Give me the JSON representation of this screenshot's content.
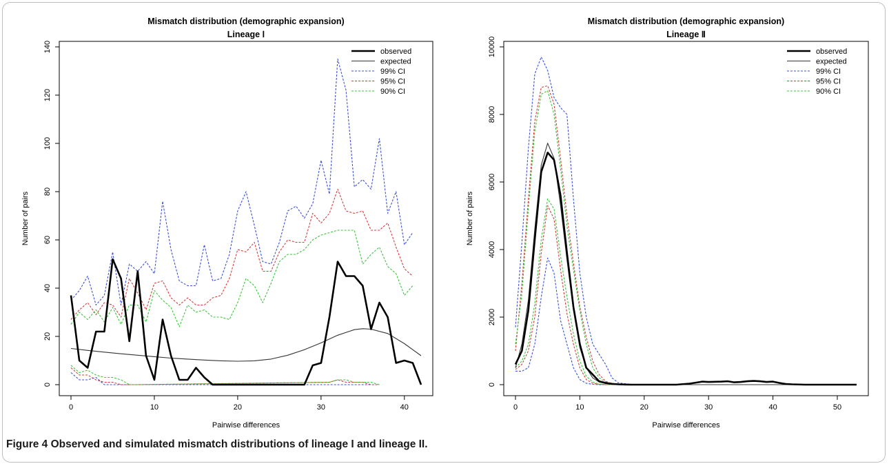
{
  "caption": {
    "label": "Figure 4",
    "text": "Observed and simulated mismatch distributions of lineage I and lineage II."
  },
  "chart_data": [
    {
      "type": "line",
      "title": "Mismatch distribution (demographic expansion)",
      "subtitle": "Lineage Ⅰ",
      "xlabel": "Pairwise differences",
      "ylabel": "Number of pairs",
      "xlim": [
        0,
        42
      ],
      "ylim": [
        0,
        140
      ],
      "xticks": [
        0,
        10,
        20,
        30,
        40
      ],
      "yticks": [
        0,
        20,
        40,
        60,
        80,
        100,
        120,
        140
      ],
      "legend_position": "top-right",
      "series": [
        {
          "name": "observed",
          "color": "#000000",
          "width": 2.6,
          "dash": "",
          "x": [
            0,
            1,
            2,
            3,
            4,
            5,
            6,
            7,
            8,
            9,
            10,
            11,
            12,
            13,
            14,
            15,
            16,
            17,
            18,
            19,
            20,
            21,
            22,
            23,
            24,
            25,
            26,
            27,
            28,
            29,
            30,
            31,
            32,
            33,
            34,
            35,
            36,
            37,
            38,
            39,
            40,
            41,
            42
          ],
          "values": [
            37,
            10,
            7,
            22,
            22,
            52,
            44,
            18,
            47,
            12,
            2,
            27,
            12,
            2,
            2,
            7,
            3,
            0,
            0,
            0,
            0,
            0,
            0,
            0,
            0,
            0,
            0,
            0,
            0,
            8,
            9,
            28,
            51,
            45,
            45,
            41,
            23,
            34,
            28,
            9,
            10,
            9,
            0
          ]
        },
        {
          "name": "expected",
          "color": "#333333",
          "width": 1.1,
          "dash": "",
          "x": [
            0,
            2,
            4,
            6,
            8,
            10,
            12,
            14,
            16,
            18,
            20,
            22,
            24,
            26,
            28,
            30,
            32,
            34,
            35,
            36,
            38,
            40,
            42
          ],
          "values": [
            15,
            14.2,
            13.5,
            12.8,
            12.2,
            11.6,
            11,
            10.6,
            10.2,
            9.9,
            9.7,
            9.9,
            10.6,
            12.2,
            14.5,
            17.3,
            20.5,
            22.8,
            23.2,
            23,
            21.2,
            17,
            12
          ]
        },
        {
          "name": "99% CI",
          "color": "#3b4fd6",
          "width": 1.1,
          "dash": "3,2",
          "x": [
            0,
            1,
            2,
            3,
            4,
            5,
            6,
            7,
            8,
            9,
            10,
            11,
            12,
            13,
            14,
            15,
            16,
            17,
            18,
            19,
            20,
            21,
            22,
            23,
            24,
            25,
            26,
            27,
            28,
            29,
            30,
            31,
            32,
            33,
            34,
            35,
            36,
            37,
            38,
            39,
            40,
            41
          ],
          "values": [
            35,
            39,
            45,
            33,
            37,
            55,
            33,
            50,
            47,
            51,
            46,
            76,
            56,
            43,
            41,
            41,
            58,
            43,
            44,
            54,
            72,
            80,
            66,
            51,
            50,
            59,
            72,
            74,
            69,
            75,
            93,
            79,
            135,
            122,
            82,
            85,
            81,
            102,
            71,
            80,
            58,
            63
          ]
        },
        {
          "name": "95% CI",
          "color": "#d63b3b",
          "width": 1.1,
          "dash": "3,2",
          "x": [
            0,
            1,
            2,
            3,
            4,
            5,
            6,
            7,
            8,
            9,
            10,
            11,
            12,
            13,
            14,
            15,
            16,
            17,
            18,
            19,
            20,
            21,
            22,
            23,
            24,
            25,
            26,
            27,
            28,
            29,
            30,
            31,
            32,
            33,
            34,
            35,
            36,
            37,
            38,
            39,
            40,
            41
          ],
          "values": [
            27,
            31,
            34,
            29,
            34,
            33,
            28,
            44,
            38,
            31,
            42,
            43,
            36,
            33,
            36,
            33,
            33,
            36,
            37,
            44,
            56,
            55,
            59,
            47,
            47,
            55,
            60,
            59,
            59,
            71,
            67,
            71,
            81,
            72,
            71,
            72,
            64,
            64,
            67,
            57,
            48,
            45
          ]
        },
        {
          "name": "90% CI",
          "color": "#3bc43b",
          "width": 1.1,
          "dash": "3,2",
          "x": [
            0,
            1,
            2,
            3,
            4,
            5,
            6,
            7,
            8,
            9,
            10,
            11,
            12,
            13,
            14,
            15,
            16,
            17,
            18,
            19,
            20,
            21,
            22,
            23,
            24,
            25,
            26,
            27,
            28,
            29,
            30,
            31,
            32,
            33,
            34,
            35,
            36,
            37,
            38,
            39,
            40,
            41
          ],
          "values": [
            25,
            30,
            27,
            31,
            26,
            32,
            25,
            33,
            33,
            26,
            39,
            35,
            32,
            24,
            33,
            30,
            31,
            28,
            28,
            27,
            34,
            44,
            41,
            34,
            42,
            51,
            54,
            54,
            56,
            60,
            62,
            63,
            64,
            64,
            64,
            50,
            54,
            57,
            49,
            46,
            37,
            41
          ]
        },
        {
          "name": "lower 99% CI",
          "color": "#3b4fd6",
          "width": 1.1,
          "dash": "3,2",
          "x": [
            0,
            1,
            2,
            3,
            4,
            5,
            6,
            7,
            8,
            31,
            32,
            33,
            34,
            35,
            36,
            37
          ],
          "values": [
            5,
            2,
            2,
            3,
            0,
            0,
            0,
            0,
            0,
            0,
            0,
            0,
            0,
            0,
            0,
            0
          ]
        },
        {
          "name": "lower 95% CI",
          "color": "#d63b3b",
          "width": 1.1,
          "dash": "3,2",
          "x": [
            0,
            1,
            2,
            3,
            4,
            5,
            6,
            7,
            8,
            31,
            32,
            33,
            34,
            35,
            36,
            37
          ],
          "values": [
            7,
            4,
            4,
            2,
            1,
            1,
            0,
            0,
            0,
            1,
            2,
            1,
            1,
            1,
            0,
            0
          ]
        },
        {
          "name": "lower 90% CI",
          "color": "#3bc43b",
          "width": 1.1,
          "dash": "3,2",
          "x": [
            0,
            1,
            2,
            3,
            4,
            5,
            6,
            7,
            8,
            31,
            32,
            33,
            34,
            35,
            36,
            37
          ],
          "values": [
            8,
            5,
            6,
            4,
            3,
            3,
            2,
            0,
            0,
            1,
            2,
            2,
            1,
            1,
            1,
            0
          ]
        }
      ],
      "legend": [
        {
          "label": "observed",
          "color": "#000000",
          "width": 2.6,
          "dash": ""
        },
        {
          "label": "expected",
          "color": "#333333",
          "width": 1.1,
          "dash": ""
        },
        {
          "label": "99% CI",
          "color": "#3b4fd6",
          "width": 1.1,
          "dash": "3,2"
        },
        {
          "label": "95% CI",
          "color": "#d63b3b",
          "width": 1.1,
          "dash": "3,2"
        },
        {
          "label": "90% CI",
          "color": "#3bc43b",
          "width": 1.1,
          "dash": "3,2"
        }
      ]
    },
    {
      "type": "line",
      "title": "Mismatch distribution (demographic expansion)",
      "subtitle": "Lineage Ⅱ",
      "xlabel": "Pairwise differences",
      "ylabel": "Number of pairs",
      "xlim": [
        0,
        53
      ],
      "ylim": [
        0,
        10000
      ],
      "xticks": [
        0,
        10,
        20,
        30,
        40,
        50
      ],
      "yticks": [
        0,
        2000,
        4000,
        6000,
        8000,
        10000
      ],
      "legend_position": "top-right",
      "series": [
        {
          "name": "observed",
          "color": "#000000",
          "width": 2.6,
          "dash": "",
          "x": [
            0,
            1,
            2,
            3,
            4,
            5,
            6,
            7,
            8,
            9,
            10,
            11,
            12,
            13,
            14,
            15,
            16,
            17,
            18,
            20,
            25,
            27,
            28,
            29,
            30,
            31,
            32,
            33,
            34,
            35,
            36,
            37,
            38,
            39,
            40,
            41,
            42,
            43,
            45,
            50,
            53
          ],
          "values": [
            600,
            1000,
            2200,
            4300,
            6300,
            6870,
            6650,
            5600,
            3900,
            2300,
            1200,
            500,
            300,
            100,
            50,
            25,
            10,
            5,
            0,
            0,
            0,
            30,
            60,
            90,
            80,
            85,
            90,
            100,
            70,
            80,
            100,
            110,
            100,
            80,
            90,
            50,
            20,
            10,
            0,
            0,
            0
          ]
        },
        {
          "name": "expected",
          "color": "#333333",
          "width": 1.1,
          "dash": "",
          "x": [
            0,
            1,
            2,
            3,
            4,
            5,
            6,
            7,
            8,
            9,
            10,
            11,
            12,
            13,
            14,
            15,
            16,
            18,
            20,
            53
          ],
          "values": [
            500,
            1200,
            2500,
            4600,
            6500,
            7150,
            6700,
            5300,
            3700,
            2200,
            1100,
            500,
            200,
            80,
            30,
            10,
            5,
            0,
            0,
            0
          ]
        },
        {
          "name": "99% CI",
          "color": "#3b4fd6",
          "width": 1.1,
          "dash": "3,2",
          "x": [
            0,
            1,
            2,
            3,
            4,
            5,
            6,
            7,
            8,
            9,
            10,
            11,
            12,
            13,
            14,
            15,
            16,
            18,
            20,
            53
          ],
          "values": [
            1700,
            4200,
            7000,
            9200,
            9700,
            9300,
            8500,
            8200,
            8000,
            5500,
            3300,
            2000,
            1200,
            900,
            600,
            200,
            50,
            10,
            0,
            0
          ]
        },
        {
          "name": "95% CI",
          "color": "#d63b3b",
          "width": 1.1,
          "dash": "3,2",
          "x": [
            0,
            1,
            2,
            3,
            4,
            5,
            6,
            7,
            8,
            9,
            10,
            11,
            12,
            13,
            14,
            15,
            16,
            18,
            20,
            53
          ],
          "values": [
            1000,
            3000,
            5500,
            7800,
            8800,
            8850,
            8300,
            6700,
            5000,
            3600,
            2300,
            1400,
            700,
            300,
            100,
            30,
            10,
            0,
            0,
            0
          ]
        },
        {
          "name": "90% CI",
          "color": "#3bc43b",
          "width": 1.1,
          "dash": "3,2",
          "x": [
            0,
            1,
            2,
            3,
            4,
            5,
            6,
            7,
            8,
            9,
            10,
            11,
            12,
            13,
            14,
            15,
            16,
            18,
            20,
            53
          ],
          "values": [
            1200,
            2700,
            5200,
            7500,
            8600,
            8700,
            8000,
            6400,
            4700,
            3400,
            2200,
            1200,
            500,
            200,
            80,
            20,
            5,
            0,
            0,
            0
          ]
        },
        {
          "name": "lower 99% CI",
          "color": "#3b4fd6",
          "width": 1.1,
          "dash": "3,2",
          "x": [
            0,
            1,
            2,
            3,
            4,
            5,
            6,
            7,
            8,
            9,
            10,
            11,
            12,
            13,
            14,
            15,
            53
          ],
          "values": [
            400,
            400,
            500,
            1200,
            2600,
            3750,
            3300,
            1900,
            1200,
            500,
            150,
            40,
            10,
            0,
            0,
            0,
            0
          ]
        },
        {
          "name": "lower 95% CI",
          "color": "#d63b3b",
          "width": 1.1,
          "dash": "3,2",
          "x": [
            0,
            1,
            2,
            3,
            4,
            5,
            6,
            7,
            8,
            9,
            10,
            11,
            12,
            13,
            14,
            15,
            53
          ],
          "values": [
            450,
            600,
            1000,
            2000,
            3900,
            5300,
            4900,
            3400,
            2100,
            1200,
            500,
            150,
            40,
            10,
            0,
            0,
            0
          ]
        },
        {
          "name": "lower 90% CI",
          "color": "#3bc43b",
          "width": 1.1,
          "dash": "3,2",
          "x": [
            0,
            1,
            2,
            3,
            4,
            5,
            6,
            7,
            8,
            9,
            10,
            11,
            12,
            13,
            14,
            15,
            53
          ],
          "values": [
            500,
            700,
            1200,
            2400,
            4300,
            5500,
            5200,
            3800,
            2600,
            1500,
            700,
            250,
            80,
            20,
            5,
            0,
            0
          ]
        }
      ],
      "legend": [
        {
          "label": "observed",
          "color": "#000000",
          "width": 2.6,
          "dash": ""
        },
        {
          "label": "expected",
          "color": "#333333",
          "width": 1.1,
          "dash": ""
        },
        {
          "label": "99% CI",
          "color": "#3b4fd6",
          "width": 1.1,
          "dash": "3,2"
        },
        {
          "label": "95% CI",
          "color": "#d63b3b",
          "width": 1.1,
          "dash": "3,2"
        },
        {
          "label": "90% CI",
          "color": "#3bc43b",
          "width": 1.1,
          "dash": "3,2"
        }
      ]
    }
  ]
}
